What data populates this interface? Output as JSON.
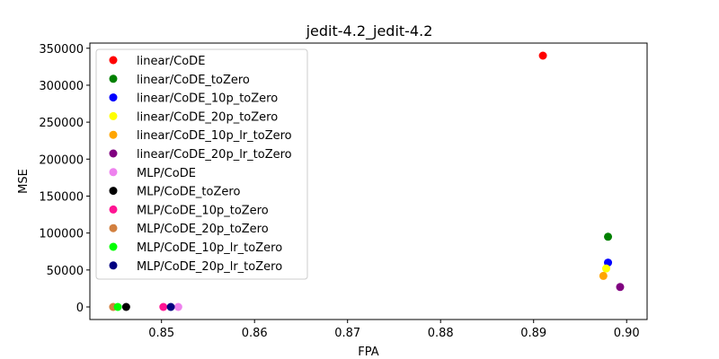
{
  "chart_data": {
    "type": "scatter",
    "title": "jedit-4.2_jedit-4.2",
    "xlabel": "FPA",
    "ylabel": "MSE",
    "xlim": [
      0.8423,
      0.9022
    ],
    "ylim": [
      -17000,
      357000
    ],
    "xticks": [
      0.85,
      0.86,
      0.87,
      0.88,
      0.89,
      0.9
    ],
    "xtick_labels": [
      "0.85",
      "0.86",
      "0.87",
      "0.88",
      "0.89",
      "0.90"
    ],
    "yticks": [
      0,
      50000,
      100000,
      150000,
      200000,
      250000,
      300000,
      350000
    ],
    "ytick_labels": [
      "0",
      "50000",
      "100000",
      "150000",
      "200000",
      "250000",
      "300000",
      "350000"
    ],
    "grid": false,
    "legend_position": "top-left",
    "series": [
      {
        "name": "linear/CoDE",
        "color": "#ff0000",
        "x": [
          0.891
        ],
        "y": [
          340000
        ]
      },
      {
        "name": "linear/CoDE_toZero",
        "color": "#008000",
        "x": [
          0.898
        ],
        "y": [
          95000
        ]
      },
      {
        "name": "linear/CoDE_10p_toZero",
        "color": "#0000ff",
        "x": [
          0.898
        ],
        "y": [
          60000
        ]
      },
      {
        "name": "linear/CoDE_20p_toZero",
        "color": "#ffff00",
        "x": [
          0.8978
        ],
        "y": [
          52000
        ]
      },
      {
        "name": "linear/CoDE_10p_lr_toZero",
        "color": "#ffa500",
        "x": [
          0.8975
        ],
        "y": [
          42000
        ]
      },
      {
        "name": "linear/CoDE_20p_lr_toZero",
        "color": "#800080",
        "x": [
          0.8993
        ],
        "y": [
          27000
        ]
      },
      {
        "name": "MLP/CoDE",
        "color": "#ee82ee",
        "x": [
          0.8518
        ],
        "y": [
          0
        ]
      },
      {
        "name": "MLP/CoDE_toZero",
        "color": "#000000",
        "x": [
          0.8462
        ],
        "y": [
          0
        ]
      },
      {
        "name": "MLP/CoDE_10p_toZero",
        "color": "#ff1493",
        "x": [
          0.8502
        ],
        "y": [
          0
        ]
      },
      {
        "name": "MLP/CoDE_20p_toZero",
        "color": "#d2803f",
        "x": [
          0.8448
        ],
        "y": [
          0
        ]
      },
      {
        "name": "MLP/CoDE_10p_lr_toZero",
        "color": "#00ff00",
        "x": [
          0.8453
        ],
        "y": [
          0
        ]
      },
      {
        "name": "MLP/CoDE_20p_lr_toZero",
        "color": "#000080",
        "x": [
          0.851
        ],
        "y": [
          0
        ]
      }
    ]
  }
}
